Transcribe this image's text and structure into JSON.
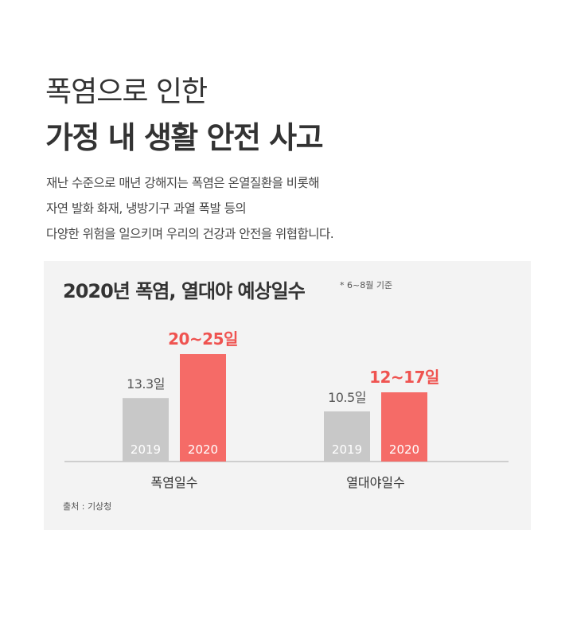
{
  "header": {
    "title_line1": "폭염으로 인한",
    "title_line2": "가정 내 생활 안전 사고"
  },
  "description": [
    "재난 수준으로 매년 강해지는 폭염은 온열질환을 비롯해",
    "자연 발화 화재, 냉방기구 과열 폭발 등의",
    "다양한 위험을 일으키며 우리의 건강과 안전을 위협합니다."
  ],
  "colors": {
    "bar_2019": "#c8c8c8",
    "bar_2020": "#f56b67",
    "label_2020": "#ef5350",
    "label_2019": "#555555",
    "panel_bg": "#f3f3f3"
  },
  "chart_data": {
    "type": "bar",
    "title": "2020년 폭염, 열대야 예상일수",
    "note": "* 6~8월 기준",
    "source": "출처 : 기상청",
    "categories": [
      "폭염일수",
      "열대야일수"
    ],
    "series": [
      {
        "name": "2019",
        "values": [
          13.3,
          10.5
        ],
        "labels": [
          "13.3일",
          "10.5일"
        ]
      },
      {
        "name": "2020",
        "values": [
          22.5,
          14.5
        ],
        "labels": [
          "20~25일",
          "12~17일"
        ],
        "range": [
          [
            20,
            25
          ],
          [
            12,
            17
          ]
        ]
      }
    ],
    "ylim": [
      0,
      25
    ],
    "grid": false,
    "xlabel": "",
    "ylabel": ""
  }
}
